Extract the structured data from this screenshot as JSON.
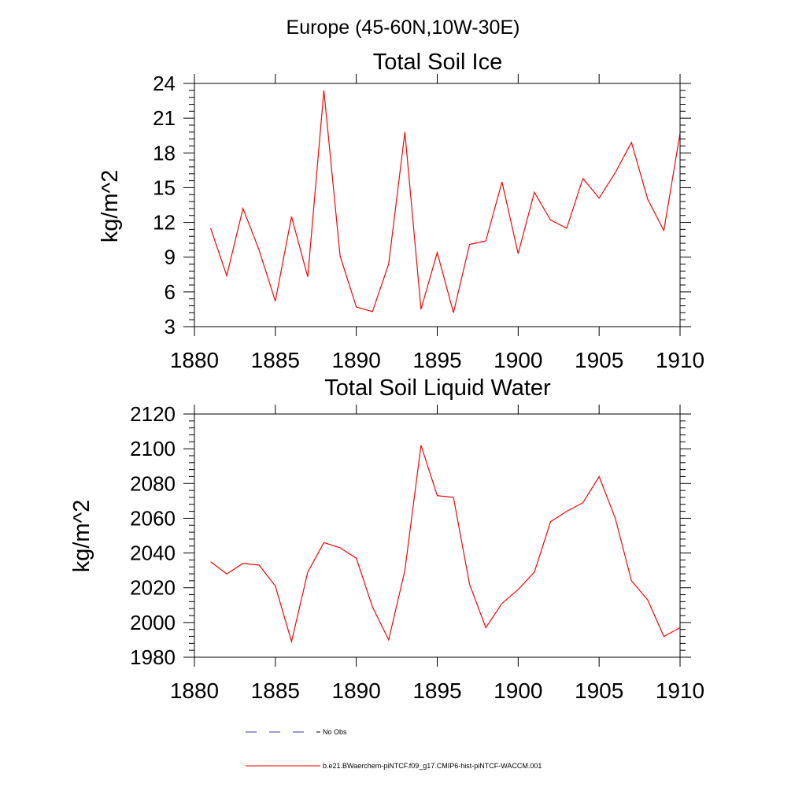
{
  "figure": {
    "suptitle": "Europe (45-60N,10W-30E)"
  },
  "chart_data": [
    {
      "type": "line",
      "title": "Total Soil Ice",
      "xlabel": "",
      "ylabel": "kg/m^2",
      "xlim": [
        1880,
        1910
      ],
      "ylim": [
        3,
        24
      ],
      "xticks": [
        1880,
        1885,
        1890,
        1895,
        1900,
        1905,
        1910
      ],
      "yticks": [
        3,
        6,
        9,
        12,
        15,
        18,
        21,
        24
      ],
      "grid": false,
      "x": [
        1881,
        1882,
        1883,
        1884,
        1885,
        1886,
        1887,
        1888,
        1889,
        1890,
        1891,
        1892,
        1893,
        1894,
        1895,
        1896,
        1897,
        1898,
        1899,
        1900,
        1901,
        1902,
        1903,
        1904,
        1905,
        1906,
        1907,
        1908,
        1909,
        1910
      ],
      "series": [
        {
          "name": "b.e21.BWaerchem-piNTCF.f09_g17.CMIP6-hist-piNTCF-WACCM.001",
          "color": "#ff0000",
          "values": [
            11.5,
            7.4,
            13.2,
            9.6,
            5.2,
            12.5,
            7.3,
            23.4,
            9.1,
            4.7,
            4.3,
            8.4,
            19.8,
            4.5,
            9.4,
            4.2,
            10.1,
            10.4,
            15.5,
            9.3,
            14.6,
            12.2,
            11.5,
            15.8,
            14.1,
            16.3,
            18.9,
            14.0,
            11.3,
            19.7
          ]
        }
      ]
    },
    {
      "type": "line",
      "title": "Total Soil Liquid Water",
      "xlabel": "",
      "ylabel": "kg/m^2",
      "xlim": [
        1880,
        1910
      ],
      "ylim": [
        1980,
        2120
      ],
      "xticks": [
        1880,
        1885,
        1890,
        1895,
        1900,
        1905,
        1910
      ],
      "yticks": [
        1980,
        2000,
        2020,
        2040,
        2060,
        2080,
        2100,
        2120
      ],
      "grid": false,
      "x": [
        1881,
        1882,
        1883,
        1884,
        1885,
        1886,
        1887,
        1888,
        1889,
        1890,
        1891,
        1892,
        1893,
        1894,
        1895,
        1896,
        1897,
        1898,
        1899,
        1900,
        1901,
        1902,
        1903,
        1904,
        1905,
        1906,
        1907,
        1908,
        1909,
        1910
      ],
      "series": [
        {
          "name": "b.e21.BWaerchem-piNTCF.f09_g17.CMIP6-hist-piNTCF-WACCM.001",
          "color": "#ff0000",
          "values": [
            2035,
            2028,
            2034,
            2033,
            2021,
            1989,
            2029,
            2046,
            2043,
            2037,
            2009,
            1990,
            2030,
            2102,
            2073,
            2072,
            2022,
            1997,
            2011,
            2019,
            2029,
            2058,
            2064,
            2069,
            2084,
            2060,
            2024,
            2013,
            1992,
            1997
          ]
        }
      ]
    }
  ],
  "legend": {
    "placement": "bottom-center",
    "items": [
      {
        "label": "No Obs",
        "color": "#3a3aa0",
        "style": "dashed"
      },
      {
        "label": "b.e21.BWaerchem-piNTCF.f09_g17.CMIP6-hist-piNTCF-WACCM.001",
        "color": "#ff0000",
        "style": "solid"
      }
    ]
  }
}
